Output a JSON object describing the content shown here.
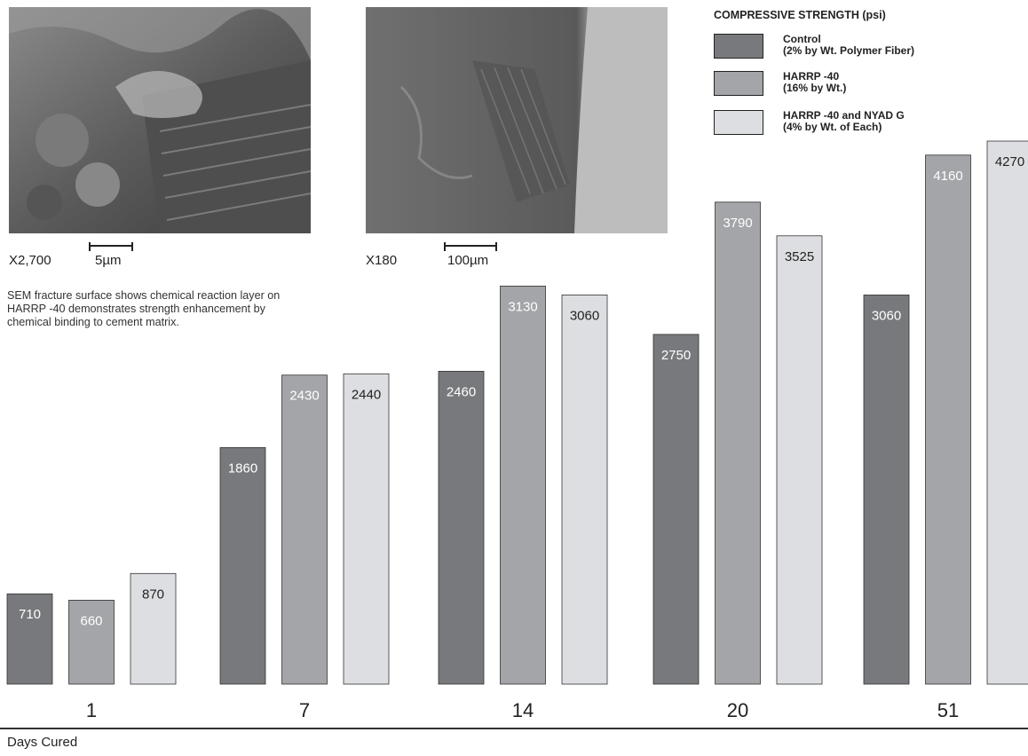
{
  "images": [
    {
      "magnification": "X2,700",
      "scale": "5µm"
    },
    {
      "magnification": "X180",
      "scale": "100µm"
    }
  ],
  "caption": "SEM fracture surface shows chemical reaction layer on HARRP -40 demonstrates strength enhancement by chemical binding to cement matrix.",
  "chart_data": {
    "type": "bar",
    "categories": [
      "1",
      "7",
      "14",
      "20",
      "51"
    ],
    "xlabel": "Days Cured",
    "legend_title": "COMPRESSIVE STRENGTH (psi)",
    "legend_position": "top-right",
    "ylim": [
      0,
      4270
    ],
    "grid": false,
    "series": [
      {
        "name": "Control\n(2% by Wt. Polymer Fiber)",
        "color": "#77797c",
        "label_color": "#ffffff",
        "values": [
          710,
          1860,
          2460,
          2750,
          3060
        ]
      },
      {
        "name": "HARRP -40\n(16% by Wt.)",
        "color": "#a3a5a8",
        "label_color": "#ffffff",
        "values": [
          660,
          2430,
          3130,
          3790,
          4160
        ]
      },
      {
        "name": "HARRP -40 and NYAD G\n(4% by Wt. of Each)",
        "color": "#dcdee1",
        "label_color": "#222222",
        "values": [
          870,
          2440,
          3060,
          3525,
          4270
        ]
      }
    ]
  }
}
